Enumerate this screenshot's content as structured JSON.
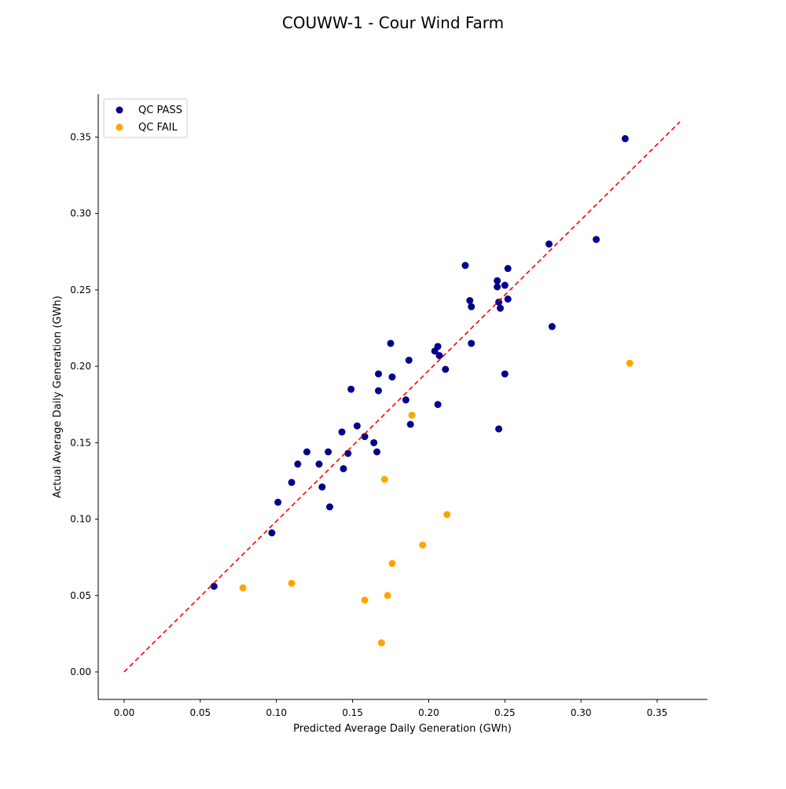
{
  "chart_data": {
    "type": "scatter",
    "title": "COUWW-1 - Cour Wind Farm",
    "xlabel": "Predicted Average Daily Generation (GWh)",
    "ylabel": "Actual Average Daily Generation (GWh)",
    "xlim": [
      -0.017,
      0.383
    ],
    "ylim": [
      -0.018,
      0.378
    ],
    "xticks": [
      "0.00",
      "0.05",
      "0.10",
      "0.15",
      "0.20",
      "0.25",
      "0.30",
      "0.35"
    ],
    "yticks": [
      "0.00",
      "0.05",
      "0.10",
      "0.15",
      "0.20",
      "0.25",
      "0.30",
      "0.35"
    ],
    "legend_position": "top-left",
    "reference_line": {
      "style": "dashed",
      "color": "#ff0000",
      "from": [
        0.0,
        0.0
      ],
      "to": [
        0.365,
        0.36
      ]
    },
    "series": [
      {
        "name": "QC PASS",
        "color": "#00008b",
        "points": [
          [
            0.059,
            0.056
          ],
          [
            0.097,
            0.091
          ],
          [
            0.101,
            0.111
          ],
          [
            0.11,
            0.124
          ],
          [
            0.114,
            0.136
          ],
          [
            0.12,
            0.144
          ],
          [
            0.128,
            0.136
          ],
          [
            0.13,
            0.121
          ],
          [
            0.134,
            0.144
          ],
          [
            0.135,
            0.108
          ],
          [
            0.143,
            0.157
          ],
          [
            0.144,
            0.133
          ],
          [
            0.147,
            0.143
          ],
          [
            0.149,
            0.185
          ],
          [
            0.153,
            0.161
          ],
          [
            0.158,
            0.154
          ],
          [
            0.164,
            0.15
          ],
          [
            0.166,
            0.144
          ],
          [
            0.167,
            0.184
          ],
          [
            0.167,
            0.195
          ],
          [
            0.175,
            0.215
          ],
          [
            0.176,
            0.193
          ],
          [
            0.185,
            0.178
          ],
          [
            0.187,
            0.204
          ],
          [
            0.188,
            0.162
          ],
          [
            0.204,
            0.21
          ],
          [
            0.206,
            0.213
          ],
          [
            0.206,
            0.175
          ],
          [
            0.207,
            0.207
          ],
          [
            0.211,
            0.198
          ],
          [
            0.224,
            0.266
          ],
          [
            0.227,
            0.243
          ],
          [
            0.228,
            0.239
          ],
          [
            0.228,
            0.215
          ],
          [
            0.245,
            0.252
          ],
          [
            0.245,
            0.256
          ],
          [
            0.246,
            0.159
          ],
          [
            0.246,
            0.242
          ],
          [
            0.247,
            0.238
          ],
          [
            0.25,
            0.253
          ],
          [
            0.25,
            0.195
          ],
          [
            0.252,
            0.264
          ],
          [
            0.252,
            0.244
          ],
          [
            0.279,
            0.28
          ],
          [
            0.281,
            0.226
          ],
          [
            0.31,
            0.283
          ],
          [
            0.329,
            0.349
          ]
        ]
      },
      {
        "name": "QC FAIL",
        "color": "#ffa500",
        "points": [
          [
            0.078,
            0.055
          ],
          [
            0.11,
            0.058
          ],
          [
            0.158,
            0.047
          ],
          [
            0.169,
            0.019
          ],
          [
            0.171,
            0.126
          ],
          [
            0.173,
            0.05
          ],
          [
            0.176,
            0.071
          ],
          [
            0.189,
            0.168
          ],
          [
            0.196,
            0.083
          ],
          [
            0.212,
            0.103
          ],
          [
            0.332,
            0.202
          ]
        ]
      }
    ]
  }
}
